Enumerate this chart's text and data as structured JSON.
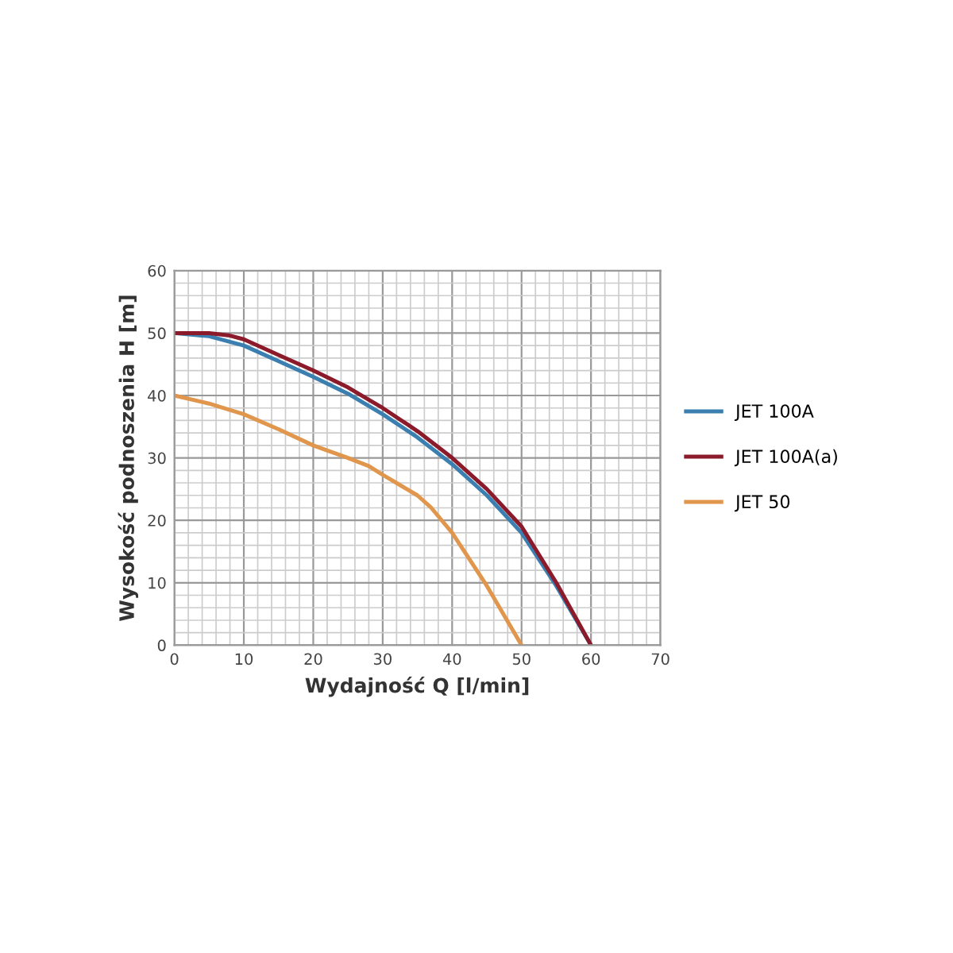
{
  "chart_data": {
    "type": "line",
    "xlabel": "Wydajność Q [l/min]",
    "ylabel": "Wysokość podnoszenia H [m]",
    "xlim": [
      0,
      70
    ],
    "xticks": [
      0,
      10,
      20,
      30,
      40,
      50,
      60,
      70
    ],
    "ylim": [
      0,
      60
    ],
    "yticks": [
      0,
      10,
      20,
      30,
      40,
      50,
      60
    ],
    "grid": true,
    "legend": "right",
    "marker": "none",
    "line_style": "solid",
    "series": [
      {
        "name": "JET 100A",
        "color": "#3a7fb0",
        "x": [
          0,
          5,
          10,
          15,
          20,
          25,
          30,
          35,
          40,
          45,
          50,
          55,
          60
        ],
        "values": [
          50,
          49.5,
          48,
          45.5,
          43,
          40.3,
          37,
          33.3,
          29,
          24,
          18,
          9.5,
          0
        ]
      },
      {
        "name": "JET 100A(a)",
        "color": "#8b1a2b",
        "x": [
          0,
          5,
          8,
          10,
          15,
          20,
          25,
          30,
          35,
          40,
          45,
          50,
          55,
          60
        ],
        "values": [
          50,
          50,
          49.6,
          49,
          46.5,
          44,
          41.3,
          38,
          34.3,
          30,
          25,
          19,
          10,
          0
        ]
      },
      {
        "name": "JET 50",
        "color": "#e0964c",
        "x": [
          0,
          5,
          10,
          15,
          20,
          25,
          28,
          30,
          35,
          37,
          40,
          45,
          50
        ],
        "values": [
          40,
          38.7,
          37,
          34.6,
          32,
          30,
          28.7,
          27.3,
          24,
          22,
          18,
          9.5,
          0
        ]
      }
    ]
  }
}
